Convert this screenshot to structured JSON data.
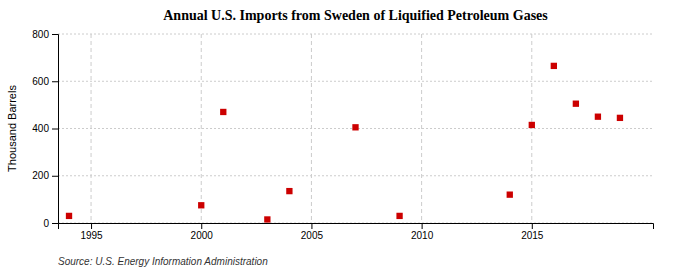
{
  "chart_data": {
    "type": "scatter",
    "title": "Annual U.S. Imports from Sweden of Liquified Petroleum Gases",
    "y_label": "Thousand Barrels",
    "annotation": "Source: U.S. Energy Information Administration",
    "x": [
      1994,
      2000,
      2001,
      2003,
      2004,
      2007,
      2009,
      2014,
      2015,
      2016,
      2017,
      2018,
      2019
    ],
    "values": [
      30,
      75,
      470,
      15,
      135,
      405,
      30,
      120,
      415,
      665,
      505,
      450,
      445
    ],
    "color": "#cc0000",
    "marker": "square",
    "xlim": [
      1993.5,
      2020.5
    ],
    "ylim": [
      0,
      800
    ],
    "xticks": [
      1995,
      2000,
      2005,
      2010,
      2015
    ],
    "yticks": [
      0,
      200,
      400,
      600,
      800
    ],
    "grid": true
  }
}
